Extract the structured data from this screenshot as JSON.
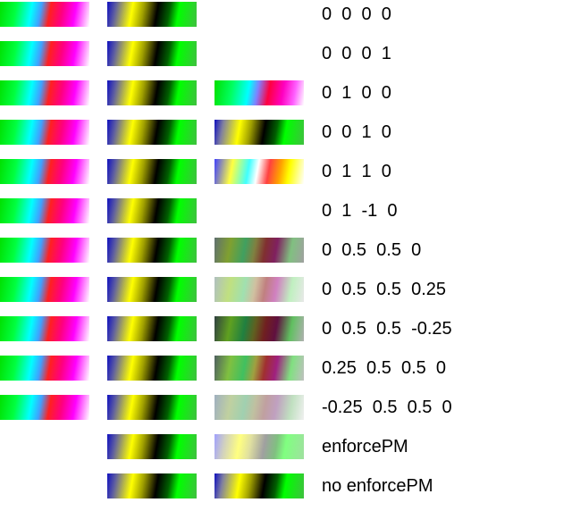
{
  "rows": [
    {
      "label": "0  0  0  0",
      "c1": "rainbow",
      "c2": "ybg",
      "c3": ""
    },
    {
      "label": "0  0  0  1",
      "c1": "rainbow",
      "c2": "ybg",
      "c3": ""
    },
    {
      "label": "0  1  0  0",
      "c1": "rainbow",
      "c2": "ybg",
      "c3": "r-100"
    },
    {
      "label": "0  0  1  0",
      "c1": "rainbow",
      "c2": "ybg",
      "c3": "r-010"
    },
    {
      "label": "0  1  1  0",
      "c1": "rainbow",
      "c2": "ybg",
      "c3": "r-110"
    },
    {
      "label": "0  1  -1  0",
      "c1": "rainbow",
      "c2": "ybg",
      "c3": ""
    },
    {
      "label": "0  0.5  0.5  0",
      "c1": "rainbow",
      "c2": "ybg",
      "c3": "r-half"
    },
    {
      "label": "0  0.5  0.5  0.25",
      "c1": "rainbow",
      "c2": "ybg",
      "c3": "r-half-p"
    },
    {
      "label": "0  0.5  0.5  -0.25",
      "c1": "rainbow",
      "c2": "ybg",
      "c3": "r-half-m"
    },
    {
      "label": "0.25  0.5  0.5  0",
      "c1": "rainbow",
      "c2": "ybg",
      "c3": "r-half-k"
    },
    {
      "label": "-0.25  0.5  0.5  0",
      "c1": "rainbow",
      "c2": "ybg",
      "c3": "r-half-km"
    },
    {
      "label": "enforcePM",
      "c1": "",
      "c2": "ybg",
      "c3": "r-enf"
    },
    {
      "label": "no enforcePM",
      "c1": "",
      "c2": "ybg",
      "c3": "r-010"
    }
  ]
}
